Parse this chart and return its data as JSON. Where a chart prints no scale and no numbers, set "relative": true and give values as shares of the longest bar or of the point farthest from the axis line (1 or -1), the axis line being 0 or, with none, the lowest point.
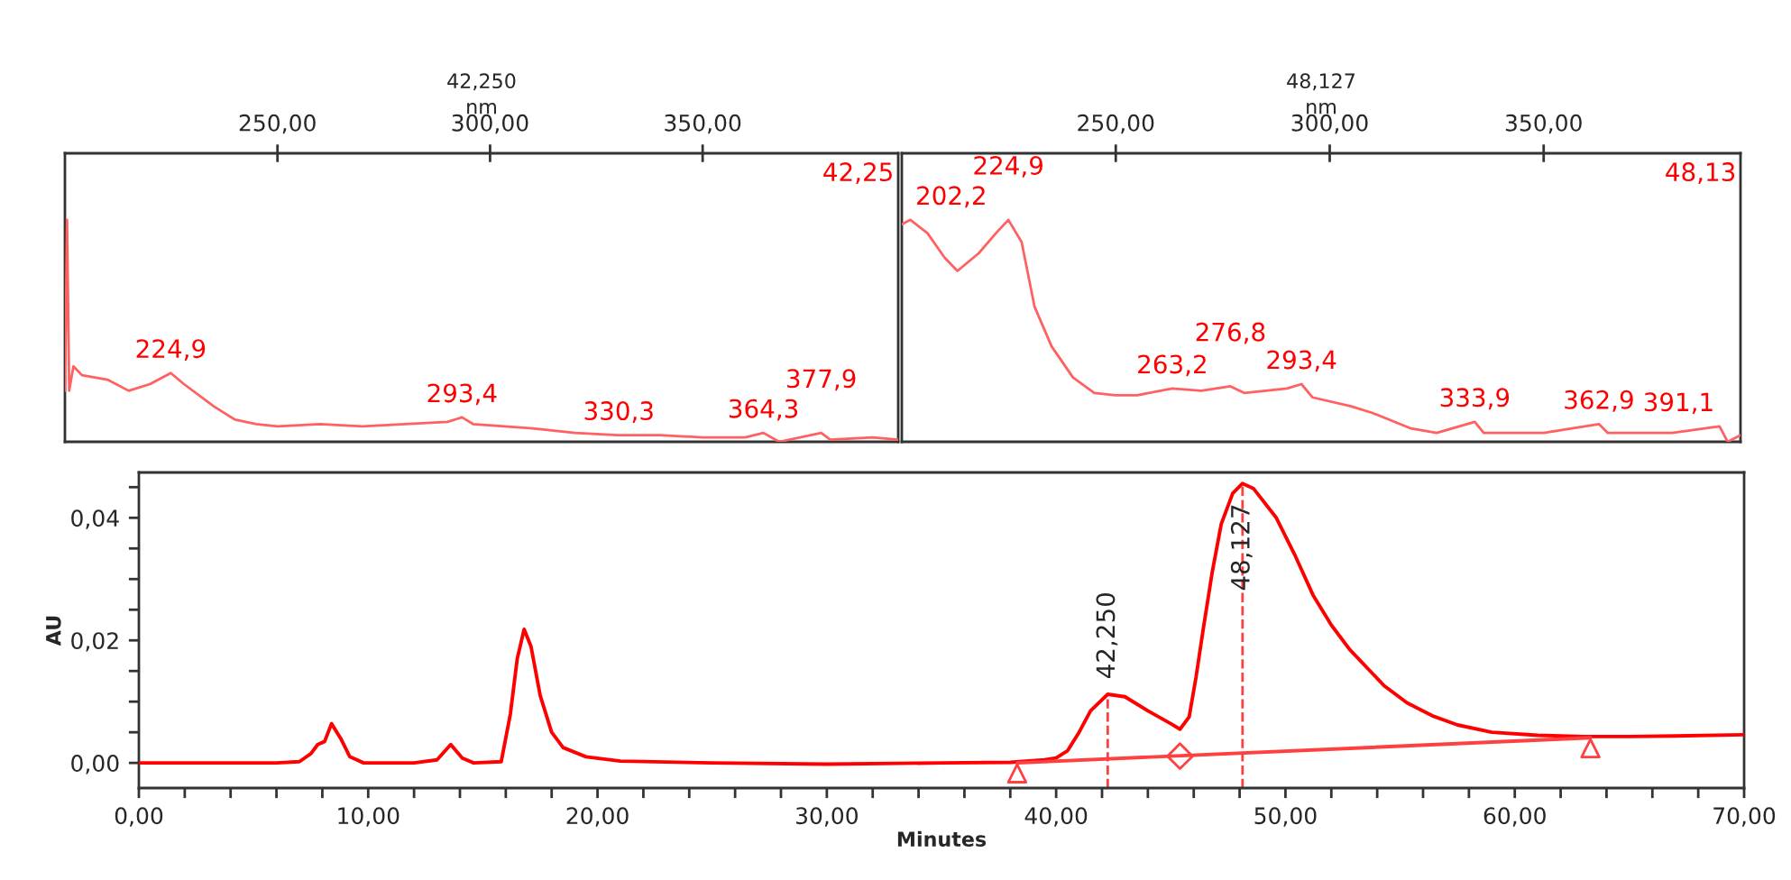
{
  "chart_data": [
    {
      "type": "line",
      "title": "42,250",
      "xlabel": "nm",
      "relative": true,
      "tick_labels": "x",
      "xlim": [
        200,
        396
      ],
      "xticks": [
        {
          "value": 250,
          "label": "250,00"
        },
        {
          "value": 300,
          "label": "300,00"
        },
        {
          "value": 350,
          "label": "350,00"
        }
      ],
      "series": [
        {
          "color": "#ff6060",
          "x": [
            200,
            200.5,
            201,
            202,
            204,
            210,
            215,
            220,
            224.9,
            228,
            235,
            240,
            245,
            250,
            260,
            270,
            280,
            290,
            293.4,
            296,
            310,
            320,
            330,
            340,
            350,
            360,
            364.3,
            368,
            377.9,
            380,
            390,
            396
          ],
          "values": [
            0.23,
            1,
            0.23,
            0.34,
            0.3,
            0.28,
            0.23,
            0.26,
            0.31,
            0.26,
            0.16,
            0.1,
            0.08,
            0.07,
            0.08,
            0.07,
            0.08,
            0.09,
            0.11,
            0.08,
            0.06,
            0.04,
            0.03,
            0.03,
            0.02,
            0.02,
            0.04,
            0,
            0.04,
            0.01,
            0.02,
            0.01
          ]
        }
      ],
      "annotations": [
        {
          "text": "224,9",
          "x": 224.9,
          "y": 0.31
        },
        {
          "text": "293,4",
          "x": 293.4,
          "y": 0.11
        },
        {
          "text": "330,3",
          "x": 330.3,
          "y": 0.03
        },
        {
          "text": "364,3",
          "x": 364.3,
          "y": 0.04
        },
        {
          "text": "377,9",
          "x": 377.9,
          "y": 0.04
        },
        "42,25"
      ]
    },
    {
      "type": "line",
      "title": "48,127",
      "xlabel": "nm",
      "relative": true,
      "tick_labels": "x",
      "xlim": [
        200,
        396
      ],
      "xticks": [
        {
          "value": 250,
          "label": "250,00"
        },
        {
          "value": 300,
          "label": "300,00"
        },
        {
          "value": 350,
          "label": "350,00"
        }
      ],
      "series": [
        {
          "color": "#ff6060",
          "x": [
            200,
            202,
            206,
            210,
            213,
            218,
            222,
            224.9,
            228,
            231,
            235,
            240,
            245,
            250,
            255,
            263.2,
            270,
            276.8,
            280,
            290,
            293.4,
            296,
            305,
            310,
            319,
            325,
            333.9,
            336,
            350,
            362.9,
            365,
            380,
            391.1,
            393,
            396
          ],
          "values": [
            0.98,
            1,
            0.94,
            0.83,
            0.77,
            0.85,
            0.94,
            1,
            0.9,
            0.61,
            0.43,
            0.29,
            0.22,
            0.21,
            0.21,
            0.24,
            0.23,
            0.25,
            0.22,
            0.24,
            0.26,
            0.2,
            0.16,
            0.13,
            0.06,
            0.04,
            0.09,
            0.04,
            0.04,
            0.08,
            0.04,
            0.04,
            0.07,
            0,
            0.03
          ]
        }
      ],
      "annotations": [
        {
          "text": "202,2",
          "x": 202,
          "y": 1
        },
        {
          "text": "224,9",
          "x": 224.9,
          "y": 1
        },
        {
          "text": "263,2",
          "x": 263.2,
          "y": 0.24
        },
        {
          "text": "276,8",
          "x": 276.8,
          "y": 0.25
        },
        {
          "text": "293,4",
          "x": 293.4,
          "y": 0.26
        },
        {
          "text": "333,9",
          "x": 333.9,
          "y": 0.09
        },
        {
          "text": "362,9",
          "x": 362.9,
          "y": 0.08
        },
        {
          "text": "391,1",
          "x": 391.1,
          "y": 0.07
        },
        "48,13"
      ]
    },
    {
      "type": "line",
      "xlabel": "Minutes",
      "ylabel": "AU",
      "xlim": [
        0,
        70
      ],
      "ylim": [
        -0.0041,
        0.0474
      ],
      "xticks": [
        {
          "value": 0,
          "label": "0,00"
        },
        {
          "value": 2,
          "label": null
        },
        {
          "value": 4,
          "label": null
        },
        {
          "value": 6,
          "label": null
        },
        {
          "value": 8,
          "label": null
        },
        {
          "value": 10,
          "label": "10,00"
        },
        {
          "value": 12,
          "label": null
        },
        {
          "value": 14,
          "label": null
        },
        {
          "value": 16,
          "label": null
        },
        {
          "value": 18,
          "label": null
        },
        {
          "value": 20,
          "label": "20,00"
        },
        {
          "value": 22,
          "label": null
        },
        {
          "value": 24,
          "label": null
        },
        {
          "value": 26,
          "label": null
        },
        {
          "value": 28,
          "label": null
        },
        {
          "value": 30,
          "label": "30,00"
        },
        {
          "value": 32,
          "label": null
        },
        {
          "value": 34,
          "label": null
        },
        {
          "value": 36,
          "label": null
        },
        {
          "value": 38,
          "label": null
        },
        {
          "value": 40,
          "label": "40,00"
        },
        {
          "value": 42,
          "label": null
        },
        {
          "value": 44,
          "label": null
        },
        {
          "value": 46,
          "label": null
        },
        {
          "value": 48,
          "label": null
        },
        {
          "value": 50,
          "label": "50,00"
        },
        {
          "value": 52,
          "label": null
        },
        {
          "value": 54,
          "label": null
        },
        {
          "value": 56,
          "label": null
        },
        {
          "value": 58,
          "label": null
        },
        {
          "value": 60,
          "label": "60,00"
        },
        {
          "value": 62,
          "label": null
        },
        {
          "value": 64,
          "label": null
        },
        {
          "value": 66,
          "label": null
        },
        {
          "value": 68,
          "label": null
        },
        {
          "value": 70,
          "label": "70,00"
        }
      ],
      "yticks": [
        {
          "value": 0,
          "label": "0,00"
        },
        {
          "value": 0.005,
          "label": null
        },
        {
          "value": 0.01,
          "label": null
        },
        {
          "value": 0.015,
          "label": null
        },
        {
          "value": 0.02,
          "label": "0,02"
        },
        {
          "value": 0.025,
          "label": null
        },
        {
          "value": 0.03,
          "label": null
        },
        {
          "value": 0.035,
          "label": null
        },
        {
          "value": 0.04,
          "label": "0,04"
        },
        {
          "value": 0.045,
          "label": null
        }
      ],
      "series": [
        {
          "type": "line",
          "color": "#ff0000",
          "x": [
            0,
            2,
            4,
            6,
            7.0,
            7.5,
            7.8,
            8.1,
            8.4,
            8.8,
            9.2,
            9.8,
            12,
            13.0,
            13.6,
            14.1,
            14.6,
            15.8,
            16.2,
            16.5,
            16.8,
            17.1,
            17.5,
            18.0,
            18.5,
            19.5,
            21,
            25,
            30,
            35,
            38,
            39.5,
            40,
            40.5,
            41,
            41.5,
            42.25,
            43,
            44,
            45,
            45.4,
            45.8,
            46.1,
            46.4,
            46.8,
            47.2,
            47.7,
            48.127,
            48.6,
            49.6,
            50.4,
            51.2,
            52,
            52.8,
            54.3,
            55.3,
            56.4,
            57.5,
            59,
            61,
            63,
            65,
            67,
            70
          ],
          "values": [
            0,
            0,
            0,
            0,
            0.0002,
            0.0015,
            0.003,
            0.0035,
            0.0064,
            0.004,
            0.001,
            0,
            0,
            0.0005,
            0.003,
            0.0008,
            0,
            0.0002,
            0.008,
            0.017,
            0.0218,
            0.019,
            0.011,
            0.005,
            0.0025,
            0.001,
            0.0003,
            0,
            -0.0002,
            0,
            0.0001,
            0.0005,
            0.0008,
            0.002,
            0.005,
            0.0085,
            0.0112,
            0.0108,
            0.0085,
            0.0064,
            0.0055,
            0.0075,
            0.014,
            0.0215,
            0.031,
            0.039,
            0.044,
            0.0456,
            0.0448,
            0.04,
            0.034,
            0.0274,
            0.0225,
            0.0185,
            0.0126,
            0.0098,
            0.0077,
            0.0062,
            0.005,
            0.0045,
            0.0043,
            0.0043,
            0.0044,
            0.0046
          ]
        },
        {
          "type": "line",
          "color": "#ff4040",
          "x": [
            38.3,
            63.3
          ],
          "values": [
            0,
            0.0041
          ]
        },
        {
          "type": "scatter",
          "marker": "triangle",
          "color": "#ff4040",
          "x": [
            38.3,
            63.3
          ],
          "values": [
            -0.0017,
            0.0024
          ]
        },
        {
          "type": "scatter",
          "marker": "diamond",
          "color": "#ff4040",
          "x": [
            45.4
          ],
          "values": [
            0.0011
          ]
        }
      ],
      "ref_lines": [
        {
          "axis": "x",
          "value": 42.25,
          "color": "#ff4040",
          "line_style": "dashed"
        },
        {
          "axis": "x",
          "value": 48.127,
          "color": "#ff4040",
          "line_style": "dashed"
        }
      ],
      "annotations": [
        {
          "text": "42,250",
          "x": 42.25,
          "y": 0.0112
        },
        {
          "text": "48,127",
          "x": 48.127,
          "y": 0.0456
        }
      ]
    }
  ]
}
